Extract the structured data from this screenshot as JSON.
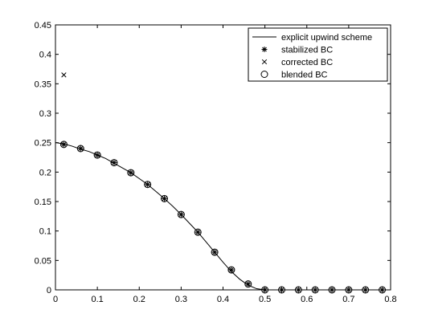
{
  "chart_data": {
    "type": "line",
    "title": "",
    "xlabel": "",
    "ylabel": "",
    "xlim": [
      0,
      0.8
    ],
    "ylim": [
      0,
      0.45
    ],
    "xticks": [
      "0",
      "0.1",
      "0.2",
      "0.3",
      "0.4",
      "0.5",
      "0.6",
      "0.7",
      "0.8"
    ],
    "yticks": [
      "0",
      "0.05",
      "0.1",
      "0.15",
      "0.2",
      "0.25",
      "0.3",
      "0.35",
      "0.4",
      "0.45"
    ],
    "grid": false,
    "legend_position": "top-right",
    "series": [
      {
        "name": "explicit upwind scheme",
        "style": "line",
        "x": [
          0.0,
          0.02,
          0.04,
          0.06,
          0.08,
          0.1,
          0.12,
          0.14,
          0.16,
          0.18,
          0.2,
          0.22,
          0.24,
          0.26,
          0.28,
          0.3,
          0.32,
          0.34,
          0.36,
          0.38,
          0.4,
          0.42,
          0.44,
          0.46,
          0.48,
          0.5,
          0.8
        ],
        "y": [
          0.25,
          0.248,
          0.244,
          0.239,
          0.235,
          0.229,
          0.223,
          0.215,
          0.207,
          0.199,
          0.189,
          0.179,
          0.167,
          0.155,
          0.142,
          0.128,
          0.113,
          0.098,
          0.081,
          0.064,
          0.047,
          0.031,
          0.018,
          0.008,
          0.002,
          0.0,
          0.0
        ]
      },
      {
        "name": "stabilized BC",
        "style": "asterisk",
        "x": [
          0.02,
          0.06,
          0.1,
          0.14,
          0.18,
          0.22,
          0.26,
          0.3,
          0.34,
          0.38,
          0.42,
          0.46,
          0.5,
          0.54,
          0.58,
          0.62,
          0.66,
          0.7,
          0.74,
          0.78
        ],
        "y": [
          0.247,
          0.24,
          0.229,
          0.216,
          0.199,
          0.179,
          0.155,
          0.128,
          0.098,
          0.064,
          0.034,
          0.01,
          0.0,
          0.0,
          0.0,
          0.0,
          0.0,
          0.0,
          0.0,
          0.0
        ]
      },
      {
        "name": "corrected BC",
        "style": "cross",
        "x": [
          0.02
        ],
        "y": [
          0.365
        ]
      },
      {
        "name": "blended BC",
        "style": "circle",
        "x": [
          0.02,
          0.06,
          0.1,
          0.14,
          0.18,
          0.22,
          0.26,
          0.3,
          0.34,
          0.38,
          0.42,
          0.46,
          0.5,
          0.54,
          0.58,
          0.62,
          0.66,
          0.7,
          0.74,
          0.78
        ],
        "y": [
          0.247,
          0.24,
          0.229,
          0.216,
          0.199,
          0.179,
          0.155,
          0.128,
          0.098,
          0.064,
          0.034,
          0.01,
          0.0,
          0.0,
          0.0,
          0.0,
          0.0,
          0.0,
          0.0,
          0.0
        ]
      }
    ]
  }
}
